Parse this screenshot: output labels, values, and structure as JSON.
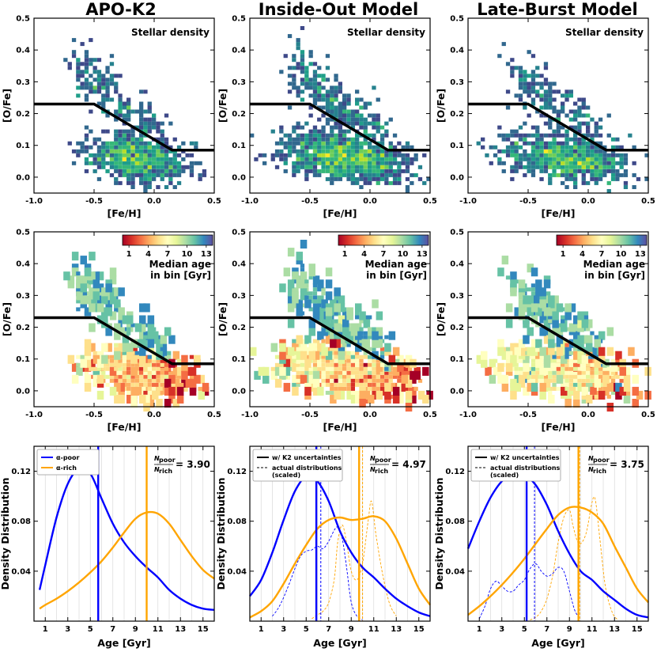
{
  "chart_data": {
    "type": "figure-grid",
    "columns": [
      {
        "title": "APO-K2"
      },
      {
        "title": "Inside-Out Model"
      },
      {
        "title": "Late-Burst Model"
      }
    ],
    "density_panels": {
      "type": "heatmap",
      "label": "Stellar density",
      "xlabel": "[Fe/H]",
      "ylabel": "[O/Fe]",
      "xlim": [
        -1.0,
        0.5
      ],
      "ylim": [
        -0.05,
        0.5
      ],
      "xticks": [
        "-1.0",
        "-0.5",
        "0.0",
        "0.5"
      ],
      "yticks": [
        "0.0",
        "0.1",
        "0.2",
        "0.3",
        "0.4",
        "0.5"
      ],
      "divider": {
        "x": [
          -1.0,
          -0.5,
          0.15,
          0.5
        ],
        "y": [
          0.23,
          0.23,
          0.085,
          0.085
        ]
      }
    },
    "age_panels": {
      "type": "heatmap",
      "colorbar_label": "Median age",
      "colorbar_label2": "in bin [Gyr]",
      "colorbar_ticks": [
        "1",
        "4",
        "7",
        "10",
        "13"
      ],
      "colorbar_range": [
        0,
        14
      ],
      "xlabel": "[Fe/H]",
      "ylabel": "[O/Fe]"
    },
    "distribution_panels": {
      "type": "line",
      "xlabel": "Age [Gyr]",
      "ylabel": "Density Distribution",
      "xlim": [
        0,
        16
      ],
      "ylim": [
        0,
        0.14
      ],
      "xticks": [
        "1",
        "3",
        "5",
        "7",
        "9",
        "11",
        "13",
        "15"
      ],
      "yticks": [
        "0.04",
        "0.08",
        "0.12"
      ],
      "ratio_label_top": "N",
      "ratio_label_top_sub": "poor",
      "ratio_label_bottom": "N",
      "ratio_label_bottom_sub": "rich",
      "panels": [
        {
          "ratio": "= 3.90",
          "legend": [
            "α-poor",
            "α-rich"
          ],
          "poor": {
            "x": [
              0.5,
              1,
              2,
              3,
              4,
              5,
              6,
              7,
              8,
              9,
              10,
              11,
              12,
              13,
              14,
              15,
              16
            ],
            "y": [
              0.025,
              0.045,
              0.083,
              0.11,
              0.122,
              0.118,
              0.098,
              0.078,
              0.063,
              0.052,
              0.043,
              0.035,
              0.025,
              0.018,
              0.013,
              0.01,
              0.009
            ]
          },
          "rich": {
            "x": [
              0.5,
              1,
              2,
              3,
              4,
              5,
              6,
              7,
              8,
              9,
              10,
              11,
              12,
              13,
              14,
              15,
              16
            ],
            "y": [
              0.01,
              0.013,
              0.018,
              0.024,
              0.031,
              0.039,
              0.048,
              0.059,
              0.071,
              0.082,
              0.087,
              0.086,
              0.078,
              0.065,
              0.052,
              0.041,
              0.034
            ]
          },
          "poor_median": 5.7,
          "rich_median": 10.0
        },
        {
          "ratio": "= 4.97",
          "legend": [
            "w/ K2 uncertainties",
            "actual distributions",
            "(scaled)"
          ],
          "poor": {
            "x": [
              0,
              1,
              2,
              3,
              4,
              5,
              6,
              7,
              8,
              9,
              10,
              11,
              12,
              13,
              14,
              15,
              16
            ],
            "y": [
              0.02,
              0.033,
              0.055,
              0.081,
              0.104,
              0.116,
              0.112,
              0.096,
              0.072,
              0.055,
              0.043,
              0.035,
              0.026,
              0.018,
              0.012,
              0.007,
              0.004
            ]
          },
          "rich": {
            "x": [
              0,
              1,
              2,
              3,
              4,
              5,
              6,
              7,
              8,
              9,
              10,
              11,
              12,
              13,
              14,
              15,
              16
            ],
            "y": [
              0.003,
              0.008,
              0.016,
              0.03,
              0.046,
              0.061,
              0.074,
              0.081,
              0.083,
              0.081,
              0.082,
              0.084,
              0.08,
              0.066,
              0.046,
              0.026,
              0.013
            ]
          },
          "poor_actual": {
            "x": [
              2,
              2.5,
              3,
              3.5,
              4,
              4.5,
              5,
              5.5,
              6,
              6.5,
              7,
              7.5,
              7.8,
              8.2,
              8.6,
              9,
              9.5,
              10
            ],
            "y": [
              0.004,
              0.01,
              0.019,
              0.03,
              0.042,
              0.052,
              0.056,
              0.057,
              0.06,
              0.058,
              0.064,
              0.073,
              0.075,
              0.066,
              0.042,
              0.015,
              0.004,
              0.001
            ]
          },
          "rich_actual": {
            "x": [
              5.5,
              6,
              6.5,
              7,
              7.5,
              7.8,
              8.2,
              8.6,
              9,
              9.5,
              10,
              10.5,
              10.8,
              11.2,
              11.8,
              12.4,
              13
            ],
            "y": [
              0.002,
              0.005,
              0.008,
              0.015,
              0.034,
              0.063,
              0.077,
              0.062,
              0.04,
              0.033,
              0.046,
              0.08,
              0.096,
              0.069,
              0.037,
              0.014,
              0.004
            ]
          },
          "poor_median": 5.9,
          "poor_actual_median": 6.3,
          "rich_median": 9.7,
          "rich_actual_median": 9.9
        },
        {
          "ratio": "= 3.75",
          "legend": [
            "w/ K2 uncertainties",
            "actual distributions",
            "(scaled)"
          ],
          "poor": {
            "x": [
              0,
              1,
              2,
              3,
              4,
              5,
              6,
              7,
              8,
              9,
              10,
              11,
              12,
              13,
              14,
              15,
              16
            ],
            "y": [
              0.058,
              0.08,
              0.099,
              0.112,
              0.118,
              0.117,
              0.109,
              0.093,
              0.072,
              0.054,
              0.04,
              0.033,
              0.024,
              0.017,
              0.01,
              0.005,
              0.003
            ]
          },
          "rich": {
            "x": [
              0,
              1,
              2,
              3,
              4,
              5,
              6,
              7,
              8,
              9,
              10,
              11,
              12,
              13,
              14,
              15,
              16
            ],
            "y": [
              0.005,
              0.012,
              0.02,
              0.029,
              0.039,
              0.05,
              0.062,
              0.074,
              0.085,
              0.091,
              0.091,
              0.087,
              0.078,
              0.06,
              0.043,
              0.026,
              0.015
            ]
          },
          "poor_actual": {
            "x": [
              1,
              1.5,
              2,
              2.5,
              3,
              3.5,
              4,
              4.5,
              5,
              5.5,
              6,
              6.5,
              7,
              7.5,
              8,
              8.5,
              9,
              9.5,
              10
            ],
            "y": [
              0.002,
              0.012,
              0.026,
              0.032,
              0.028,
              0.024,
              0.024,
              0.029,
              0.033,
              0.042,
              0.046,
              0.04,
              0.036,
              0.038,
              0.043,
              0.04,
              0.024,
              0.008,
              0.002
            ]
          },
          "rich_actual": {
            "x": [
              5.5,
              6,
              6.5,
              7,
              7.5,
              8,
              8.5,
              9,
              9.3,
              9.7,
              10,
              10.5,
              11,
              11.3,
              11.7,
              12.2,
              12.8,
              13.3
            ],
            "y": [
              0.001,
              0.003,
              0.008,
              0.018,
              0.036,
              0.063,
              0.083,
              0.089,
              0.077,
              0.064,
              0.062,
              0.071,
              0.095,
              0.097,
              0.066,
              0.027,
              0.007,
              0.001
            ]
          },
          "poor_median": 5.2,
          "poor_actual_median": 5.9,
          "rich_median": 9.8,
          "rich_actual_median": 9.8
        }
      ]
    }
  },
  "colors": {
    "poor": "#0000ff",
    "rich": "#ffa500",
    "divider": "#000000"
  }
}
